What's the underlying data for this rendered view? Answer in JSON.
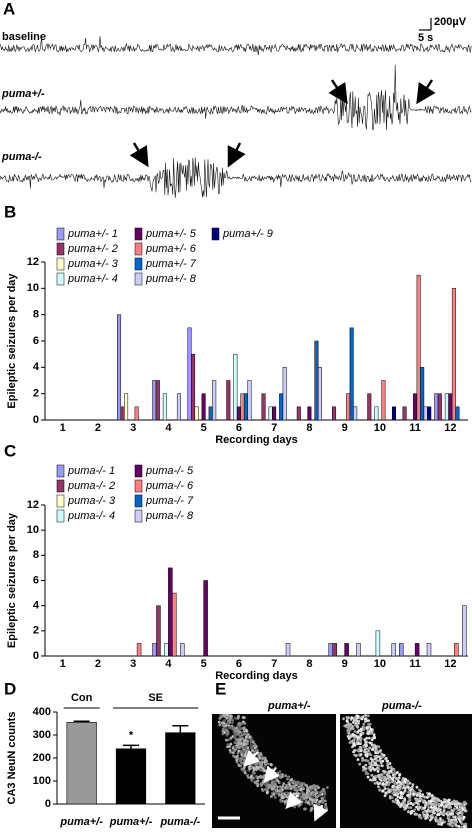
{
  "panel_a": {
    "label": "A",
    "traces": [
      "baseline",
      "puma+/-",
      "puma-/-"
    ],
    "scale_y": "200µV",
    "scale_x": "5 s"
  },
  "chart_data": [
    {
      "type": "grouped_bar",
      "panel": "B",
      "x_label": "Recording days",
      "y_label": "Epileptic seizures per day",
      "categories": [
        "1",
        "2",
        "3",
        "4",
        "5",
        "6",
        "7",
        "8",
        "9",
        "10",
        "11",
        "12"
      ],
      "ylim": [
        0,
        12
      ],
      "yticks": [
        0,
        2,
        4,
        6,
        8,
        10,
        12
      ],
      "series": [
        {
          "name": "puma+/- 1",
          "color": "#9999ff",
          "values": [
            0,
            0,
            8,
            3,
            7,
            0,
            0,
            0,
            0,
            0,
            0,
            2
          ]
        },
        {
          "name": "puma+/- 2",
          "color": "#993366",
          "values": [
            0,
            0,
            1,
            3,
            5,
            3,
            2,
            1,
            1,
            2,
            1,
            2
          ]
        },
        {
          "name": "puma+/- 3",
          "color": "#ffffcc",
          "values": [
            0,
            0,
            2,
            0,
            1,
            0,
            0,
            0,
            0,
            0,
            0,
            0
          ]
        },
        {
          "name": "puma+/- 4",
          "color": "#ccffff",
          "values": [
            0,
            0,
            0,
            2,
            0,
            5,
            1,
            0,
            0,
            1,
            0,
            2
          ]
        },
        {
          "name": "puma+/- 5",
          "color": "#660066",
          "values": [
            0,
            0,
            0,
            0,
            2,
            1,
            1,
            1,
            0,
            0,
            2,
            2
          ]
        },
        {
          "name": "puma+/- 6",
          "color": "#ff8080",
          "values": [
            0,
            0,
            1,
            0,
            0,
            2,
            0,
            0,
            2,
            3,
            11,
            10
          ]
        },
        {
          "name": "puma+/- 7",
          "color": "#0066cc",
          "values": [
            0,
            0,
            0,
            0,
            1,
            2,
            2,
            6,
            7,
            0,
            4,
            1
          ]
        },
        {
          "name": "puma+/- 8",
          "color": "#ccccff",
          "values": [
            0,
            0,
            0,
            2,
            3,
            3,
            4,
            4,
            1,
            0,
            1,
            0
          ]
        },
        {
          "name": "puma+/- 9",
          "color": "#000080",
          "values": [
            0,
            0,
            0,
            0,
            0,
            0,
            0,
            0,
            0,
            1,
            1,
            0
          ]
        }
      ]
    },
    {
      "type": "grouped_bar",
      "panel": "C",
      "x_label": "Recording days",
      "y_label": "Epileptic seizures per day",
      "categories": [
        "1",
        "2",
        "3",
        "4",
        "5",
        "6",
        "7",
        "8",
        "9",
        "10",
        "11",
        "12"
      ],
      "ylim": [
        0,
        12
      ],
      "yticks": [
        0,
        2,
        4,
        6,
        8,
        10,
        12
      ],
      "series": [
        {
          "name": "puma-/- 1",
          "color": "#9999ff",
          "values": [
            0,
            0,
            0,
            1,
            0,
            0,
            0,
            0,
            1,
            0,
            1,
            0
          ]
        },
        {
          "name": "puma-/- 2",
          "color": "#993366",
          "values": [
            0,
            0,
            0,
            4,
            0,
            0,
            0,
            0,
            1,
            0,
            0,
            0
          ]
        },
        {
          "name": "puma-/- 3",
          "color": "#ffffcc",
          "values": [
            0,
            0,
            0,
            0,
            0,
            0,
            0,
            0,
            0,
            0,
            0,
            0
          ]
        },
        {
          "name": "puma-/- 4",
          "color": "#ccffff",
          "values": [
            0,
            0,
            0,
            1,
            0,
            0,
            0,
            0,
            0,
            2,
            0,
            0
          ]
        },
        {
          "name": "puma-/- 5",
          "color": "#660066",
          "values": [
            0,
            0,
            0,
            7,
            6,
            0,
            0,
            0,
            1,
            0,
            1,
            0
          ]
        },
        {
          "name": "puma-/- 6",
          "color": "#ff8080",
          "values": [
            0,
            0,
            1,
            5,
            0,
            0,
            0,
            0,
            0,
            0,
            0,
            1
          ]
        },
        {
          "name": "puma-/- 7",
          "color": "#0066cc",
          "values": [
            0,
            0,
            0,
            0,
            0,
            0,
            0,
            0,
            0,
            0,
            0,
            0
          ]
        },
        {
          "name": "puma-/- 8",
          "color": "#ccccff",
          "values": [
            0,
            0,
            0,
            1,
            0,
            0,
            1,
            0,
            1,
            1,
            1,
            4
          ]
        }
      ]
    },
    {
      "type": "bar",
      "panel": "D",
      "y_label": "CA3 NeuN counts",
      "categories": [
        "puma+/-",
        "puma+/-",
        "puma-/-"
      ],
      "values": [
        355,
        240,
        310
      ],
      "errors": [
        5,
        15,
        30
      ],
      "colors": [
        "#999999",
        "#000000",
        "#000000"
      ],
      "ylim": [
        0,
        400
      ],
      "yticks": [
        0,
        100,
        200,
        300,
        400
      ],
      "annotations": [
        "Con",
        "SE",
        "*"
      ]
    }
  ],
  "panel_e": {
    "label": "E",
    "images": [
      "puma+/-",
      "puma-/-"
    ]
  }
}
